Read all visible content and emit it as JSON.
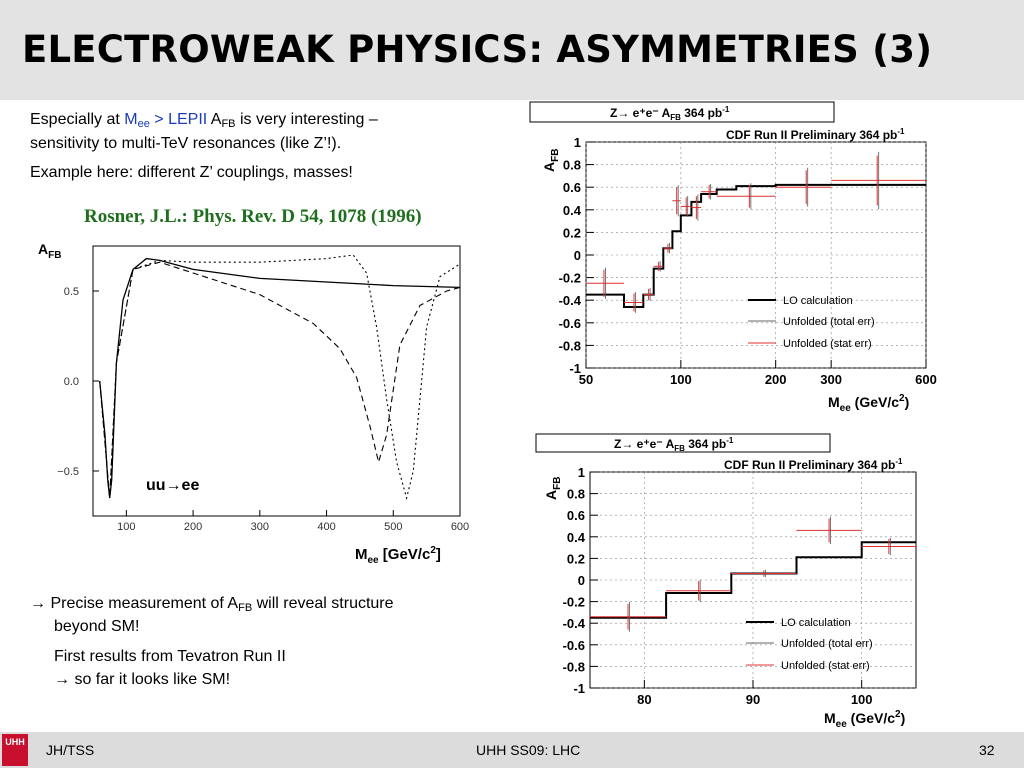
{
  "slide": {
    "title": "ELECTROWEAK PHYSICS: ASYMMETRIES (3)",
    "intro": {
      "pre": "Especially at ",
      "m": "M",
      "ee": "ee",
      "gt": " > LEPII ",
      "a": "A",
      "fb": "FB",
      "post": " is very interesting –",
      "line2": "sensitivity to multi-TeV resonances (like Z’!).",
      "line3": "Example here: different Z’ couplings, masses!"
    },
    "reference": "Rosner, J.L.: Phys. Rev. D 54, 1078 (1996)",
    "conclusion": {
      "arrow": "→",
      "pre": " Precise measurement of A",
      "fb": "FB",
      "post": " will reveal structure",
      "line2": "beyond SM!",
      "line3": "First results from Tevatron Run II",
      "line4": "→ so far it looks like SM!"
    }
  },
  "footer": {
    "left": "JH/TSS",
    "center": "UHH SS09: LHC",
    "right": "32",
    "logo": "UHH"
  },
  "theory_plot": {
    "ylabel_main": "A",
    "ylabel_sub": "FB",
    "xlabel_main": "M",
    "xlabel_sub": "ee",
    "xlabel_unit": " [GeV/c",
    "xlabel_sup": "2",
    "xlabel_end": "]",
    "process_label": "uu→ee",
    "x_ticks": [
      "100",
      "200",
      "300",
      "400",
      "500",
      "600"
    ],
    "y_ticks": [
      "0.5",
      "0.0",
      "−0.5"
    ]
  },
  "cdf_plots": [
    {
      "box_title": "Z→ e⁺e⁻ A",
      "box_sub": "FB",
      "box_lumi": " 364 pb",
      "box_sup": "-1",
      "prelim": "CDF Run II Preliminary 364 pb",
      "prelim_sup": "-1",
      "ylabel": "A",
      "ylabel_sub": "FB",
      "xlabel": "M",
      "xlabel_sub": "ee",
      "xlabel_unit": " (GeV/c",
      "xlabel_sup": "2",
      "xlabel_end": ")",
      "y_ticks": [
        "1",
        "0.8",
        "0.6",
        "0.4",
        "0.2",
        "0",
        "-0.2",
        "-0.4",
        "-0.6",
        "-0.8",
        "-1"
      ],
      "x_ticks": [
        "50",
        "100",
        "200",
        "300",
        "600"
      ],
      "legend": [
        "LO calculation",
        "Unfolded (total err)",
        "Unfolded (stat err)"
      ]
    },
    {
      "box_title": "Z→ e⁺e⁻ A",
      "box_sub": "FB",
      "box_lumi": " 364 pb",
      "box_sup": "-1",
      "prelim": "CDF Run II Preliminary 364 pb",
      "prelim_sup": "-1",
      "ylabel": "A",
      "ylabel_sub": "FB",
      "xlabel": "M",
      "xlabel_sub": "ee",
      "xlabel_unit": " (GeV/c",
      "xlabel_sup": "2",
      "xlabel_end": ")",
      "y_ticks": [
        "1",
        "0.8",
        "0.6",
        "0.4",
        "0.2",
        "0",
        "-0.2",
        "-0.4",
        "-0.6",
        "-0.8",
        "-1"
      ],
      "x_ticks": [
        "80",
        "90",
        "100"
      ],
      "legend": [
        "LO calculation",
        "Unfolded (total err)",
        "Unfolded (stat err)"
      ]
    }
  ],
  "chart_data": [
    {
      "type": "line",
      "xlim": [
        50,
        600
      ],
      "ylim": [
        -0.75,
        0.75
      ],
      "series": [
        {
          "x": [
            60,
            68,
            72,
            75,
            78,
            85,
            95,
            110,
            130,
            150,
            200,
            300,
            400,
            500,
            600
          ],
          "y": [
            0.0,
            -0.3,
            -0.55,
            -0.65,
            -0.55,
            0.1,
            0.45,
            0.62,
            0.68,
            0.67,
            0.62,
            0.57,
            0.55,
            0.53,
            0.52
          ]
        },
        {
          "x": [
            60,
            75,
            85,
            110,
            150,
            200,
            300,
            380,
            420,
            445,
            465,
            478,
            490,
            510,
            540,
            580,
            600
          ],
          "y": [
            0.0,
            -0.65,
            0.1,
            0.62,
            0.66,
            0.6,
            0.48,
            0.32,
            0.18,
            0.02,
            -0.25,
            -0.45,
            -0.3,
            0.2,
            0.42,
            0.5,
            0.52
          ]
        },
        {
          "x": [
            60,
            75,
            85,
            110,
            150,
            200,
            300,
            400,
            440,
            460,
            475,
            490,
            505,
            520,
            530,
            550,
            570,
            600
          ],
          "y": [
            0.0,
            -0.65,
            0.1,
            0.62,
            0.67,
            0.66,
            0.66,
            0.68,
            0.7,
            0.6,
            0.3,
            -0.1,
            -0.45,
            -0.65,
            -0.5,
            0.3,
            0.58,
            0.65
          ]
        }
      ]
    },
    {
      "type": "line",
      "xlim": [
        50,
        600
      ],
      "ylim": [
        -1,
        1
      ],
      "series": [
        {
          "name": "LO calculation",
          "x": [
            50,
            66,
            66,
            76,
            76,
            82,
            82,
            88,
            88,
            94,
            94,
            100,
            100,
            108,
            108,
            116,
            116,
            130,
            130,
            150,
            150,
            200,
            200,
            300,
            300,
            600
          ],
          "y": [
            -0.35,
            -0.35,
            -0.46,
            -0.46,
            -0.35,
            -0.35,
            -0.12,
            -0.12,
            0.06,
            0.06,
            0.21,
            0.21,
            0.35,
            0.35,
            0.47,
            0.47,
            0.54,
            0.54,
            0.58,
            0.58,
            0.61,
            0.61,
            0.62,
            0.62,
            0.62,
            0.62
          ]
        },
        {
          "name": "Unfolded (stat err)",
          "points": [
            {
              "x": 57,
              "y": -0.25,
              "err": 0.12,
              "xerr": [
                50,
                66
              ]
            },
            {
              "x": 71,
              "y": -0.42,
              "err": 0.08,
              "xerr": [
                66,
                76
              ]
            },
            {
              "x": 79,
              "y": -0.35,
              "err": 0.05,
              "xerr": [
                76,
                82
              ]
            },
            {
              "x": 85,
              "y": -0.1,
              "err": 0.04,
              "xerr": [
                82,
                88
              ]
            },
            {
              "x": 91,
              "y": 0.06,
              "err": 0.04,
              "xerr": [
                88,
                94
              ]
            },
            {
              "x": 97,
              "y": 0.48,
              "err": 0.12,
              "xerr": [
                94,
                100
              ]
            },
            {
              "x": 104,
              "y": 0.43,
              "err": 0.08,
              "xerr": [
                100,
                108
              ]
            },
            {
              "x": 112,
              "y": 0.42,
              "err": 0.1,
              "xerr": [
                108,
                116
              ]
            },
            {
              "x": 123,
              "y": 0.56,
              "err": 0.06,
              "xerr": [
                116,
                130
              ]
            },
            {
              "x": 165,
              "y": 0.52,
              "err": 0.1,
              "xerr": [
                130,
                200
              ]
            },
            {
              "x": 250,
              "y": 0.6,
              "err": 0.15,
              "xerr": [
                200,
                300
              ]
            },
            {
              "x": 420,
              "y": 0.66,
              "err": 0.22,
              "xerr": [
                300,
                600
              ]
            }
          ]
        }
      ]
    },
    {
      "type": "line",
      "xlim": [
        75,
        105
      ],
      "ylim": [
        -1,
        1
      ],
      "series": [
        {
          "name": "LO calculation",
          "x": [
            75,
            82,
            82,
            88,
            88,
            94,
            94,
            100,
            100,
            105
          ],
          "y": [
            -0.35,
            -0.35,
            -0.12,
            -0.12,
            0.06,
            0.06,
            0.21,
            0.21,
            0.35,
            0.35
          ]
        },
        {
          "name": "Unfolded (stat err)",
          "points": [
            {
              "x": 78.5,
              "y": -0.34,
              "err": 0.12,
              "xerr": [
                75,
                82
              ]
            },
            {
              "x": 85,
              "y": -0.1,
              "err": 0.09,
              "xerr": [
                82,
                88
              ]
            },
            {
              "x": 91,
              "y": 0.06,
              "err": 0.03,
              "xerr": [
                88,
                94
              ]
            },
            {
              "x": 97,
              "y": 0.46,
              "err": 0.11,
              "xerr": [
                94,
                100
              ]
            },
            {
              "x": 102.5,
              "y": 0.31,
              "err": 0.07,
              "xerr": [
                100,
                105
              ]
            }
          ]
        }
      ]
    }
  ]
}
